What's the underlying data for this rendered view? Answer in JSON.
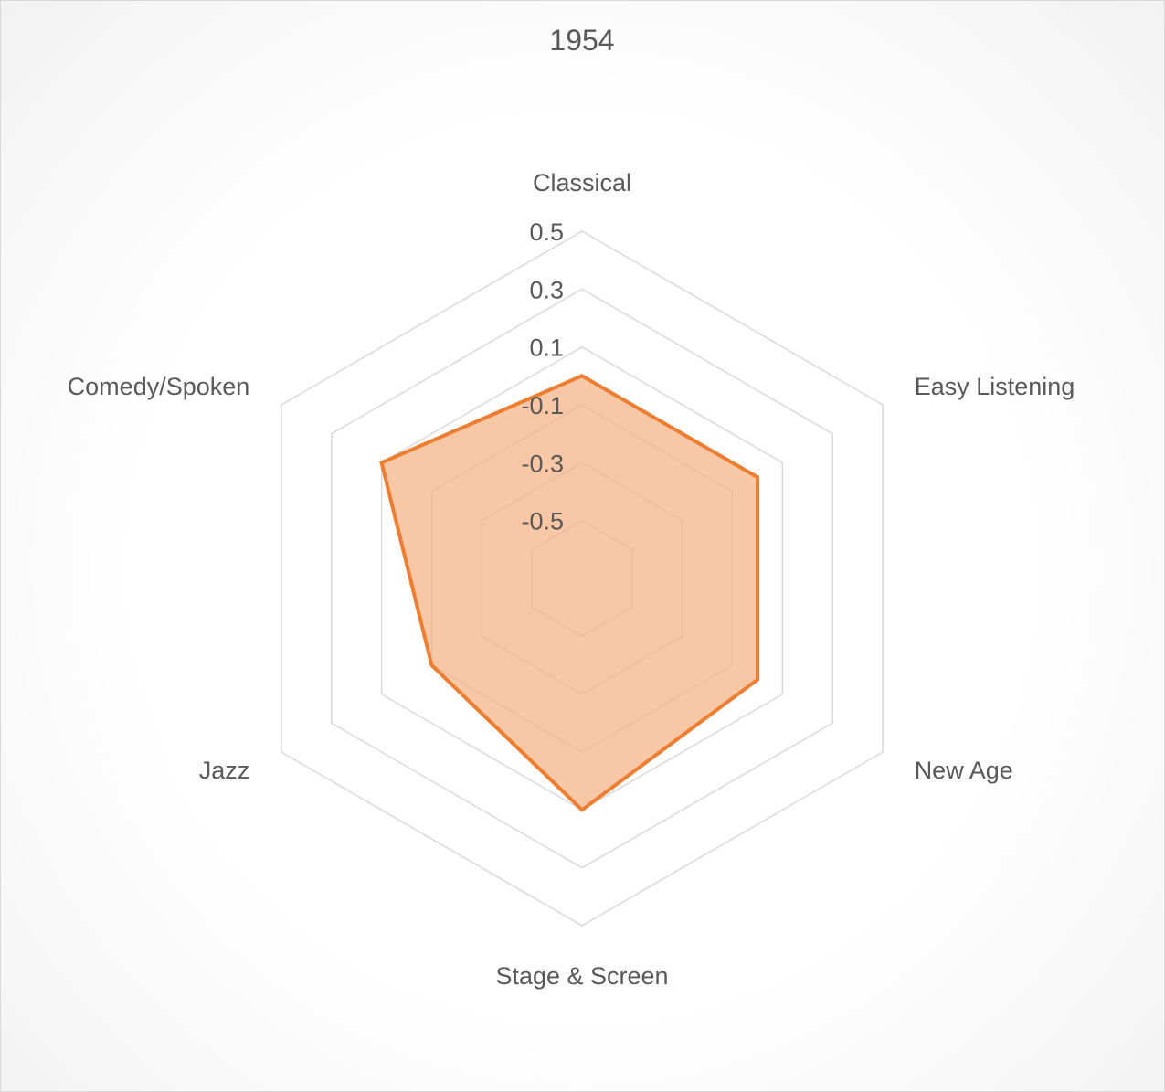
{
  "chart_data": {
    "type": "radar",
    "title": "1954",
    "categories": [
      "Classical",
      "Easy Listening",
      "New Age",
      "Stage & Screen",
      "Jazz",
      "Comedy/Spoken"
    ],
    "series": [
      {
        "values": [
          0.0,
          0.0,
          0.0,
          0.1,
          -0.1,
          0.1
        ]
      }
    ],
    "rlim": [
      -0.7,
      0.5
    ],
    "ticks": [
      "0.5",
      "0.3",
      "0.1",
      "-0.1",
      "-0.3",
      "-0.5"
    ],
    "tick_values": [
      0.5,
      0.3,
      0.1,
      -0.1,
      -0.3,
      -0.5
    ],
    "grid": true,
    "legend": "none",
    "colors": {
      "series_stroke": "#ED7D31",
      "series_fill": "#F4B183",
      "grid": "#D9D9D9",
      "text": "#595959"
    }
  }
}
